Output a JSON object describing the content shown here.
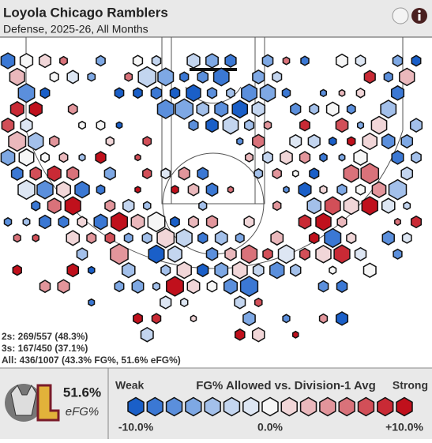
{
  "header": {
    "title": "Loyola Chicago Ramblers",
    "subtitle": "Defense, 2025-26, All Months"
  },
  "summary": {
    "lines": [
      "2s: 269/557 (48.3%)",
      "3s: 167/450 (37.1%)",
      "All: 436/1007 (43.3% FG%, 51.6% eFG%)"
    ]
  },
  "footer": {
    "efg_value": "51.6%",
    "efg_label": "eFG%",
    "legend_title": "FG% Allowed vs. Division-1 Avg",
    "weak": "Weak",
    "strong": "Strong",
    "scale_labels": [
      "-10.0%",
      "0.0%",
      "+10.0%"
    ],
    "scale_colors": [
      "#1a5fc8",
      "#3b78d4",
      "#5b8fdc",
      "#7ea8e4",
      "#a3c0ea",
      "#c3d5ef",
      "#dde6f3",
      "#f6f6f6",
      "#f1d6d8",
      "#eab8bc",
      "#e2959b",
      "#d9727a",
      "#d24f58",
      "#c92a35",
      "#c0101c"
    ]
  }
}
